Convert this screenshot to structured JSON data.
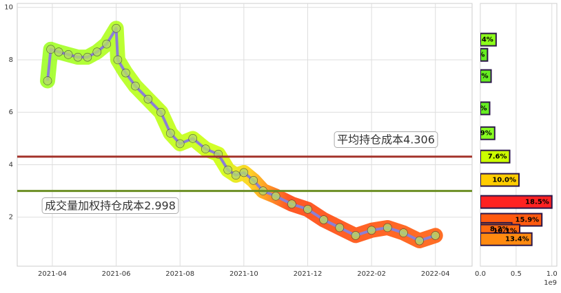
{
  "chart_data": [
    {
      "type": "line",
      "xlim": [
        2.9,
        17.15
      ],
      "ylim": [
        0.13,
        10.15
      ],
      "xticks": [
        {
          "value": 4,
          "label": "2021-04"
        },
        {
          "value": 6,
          "label": "2021-06"
        },
        {
          "value": 8,
          "label": "2021-08"
        },
        {
          "value": 10,
          "label": "2021-10"
        },
        {
          "value": 12,
          "label": "2021-12"
        },
        {
          "value": 14,
          "label": "2022-02"
        },
        {
          "value": 16,
          "label": "2022-04"
        }
      ],
      "yticks": [
        2,
        4,
        6,
        8,
        10
      ],
      "grid": true,
      "series": [
        {
          "color": "#8b80d4",
          "x": [
            3.85,
            3.95,
            4.2,
            4.5,
            4.8,
            5.1,
            5.4,
            5.7,
            6.0,
            6.05,
            6.3,
            6.6,
            7.0,
            7.4,
            7.7,
            8.0,
            8.4,
            8.8,
            9.2,
            9.5,
            9.75,
            10.0,
            10.3,
            10.6,
            11.0,
            11.5,
            12.0,
            12.5,
            13.0,
            13.5,
            14.0,
            14.5,
            15.0,
            15.5,
            16.0
          ],
          "values": [
            7.2,
            8.4,
            8.3,
            8.2,
            8.1,
            8.1,
            8.3,
            8.6,
            9.2,
            8.0,
            7.5,
            7.0,
            6.5,
            6.0,
            5.2,
            4.8,
            5.0,
            4.6,
            4.4,
            3.8,
            3.6,
            3.7,
            3.4,
            3.0,
            2.8,
            2.5,
            2.3,
            1.9,
            1.6,
            1.3,
            1.5,
            1.6,
            1.4,
            1.1,
            1.3
          ]
        }
      ],
      "hlines": [
        {
          "value": 4.306,
          "color": "#a3322a",
          "label": "平均持仓成本4.306"
        },
        {
          "value": 2.998,
          "color": "#6b8e23",
          "label": "成交量加权持仓成本2.998"
        }
      ]
    },
    {
      "type": "barh",
      "xlim": [
        0,
        1.07
      ],
      "ylim": [
        0.13,
        10.15
      ],
      "xticks": [
        {
          "value": 0,
          "label": "0.0"
        },
        0.5,
        {
          "value": 1,
          "label": "1.0"
        }
      ],
      "offset_label": "1e9",
      "grid": true,
      "y": [
        8.77,
        8.19,
        7.38,
        6.15,
        5.2,
        4.31,
        3.42,
        2.58,
        1.9,
        1.55,
        1.48,
        1.16
      ],
      "values": [
        0.22,
        0.1,
        0.15,
        0.13,
        0.2,
        0.41,
        0.54,
        1.0,
        0.86,
        0.44,
        0.55,
        0.72
      ],
      "value_labels": [
        ".4%",
        "%",
        "%",
        "%",
        ".9%",
        "7.6%",
        "10.0%",
        "18.5%",
        "15.9%",
        "8.2%",
        "10.1%",
        "13.4%"
      ],
      "colors": [
        "#8cff1a",
        "#66ee22",
        "#66ee22",
        "#66ee22",
        "#88ff22",
        "#ccff00",
        "#ffcc00",
        "#ff2222",
        "#ff5a10",
        "#ff7a10",
        "#ff6a10",
        "#ff8a10"
      ]
    }
  ]
}
